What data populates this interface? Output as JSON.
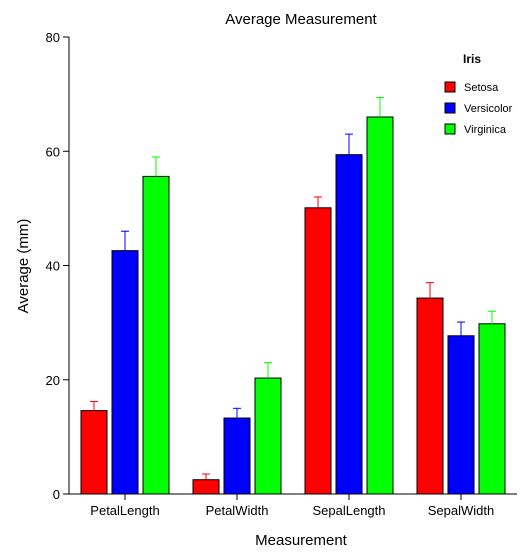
{
  "chart_data": {
    "type": "bar",
    "title": "Average Measurement",
    "xlabel": "Measurement",
    "ylabel": "Average (mm)",
    "categories": [
      "PetalLength",
      "PetalWidth",
      "SepalLength",
      "SepalWidth"
    ],
    "ylim": [
      0,
      80
    ],
    "yticks": [
      0,
      20,
      40,
      60,
      80
    ],
    "legend": {
      "title": "Iris",
      "position": "top-right"
    },
    "error_bars": "upper",
    "series": [
      {
        "name": "Setosa",
        "color": "#ff0000",
        "values": [
          14.6,
          2.5,
          50.1,
          34.3
        ],
        "errors": [
          1.6,
          1.0,
          1.9,
          2.7
        ]
      },
      {
        "name": "Versicolor",
        "color": "#0000ff",
        "values": [
          42.6,
          13.3,
          59.4,
          27.7
        ],
        "errors": [
          3.4,
          1.7,
          3.6,
          2.4
        ]
      },
      {
        "name": "Virginica",
        "color": "#00ff00",
        "values": [
          55.6,
          20.3,
          66.0,
          29.8
        ],
        "errors": [
          3.4,
          2.7,
          3.4,
          2.2
        ]
      }
    ]
  }
}
